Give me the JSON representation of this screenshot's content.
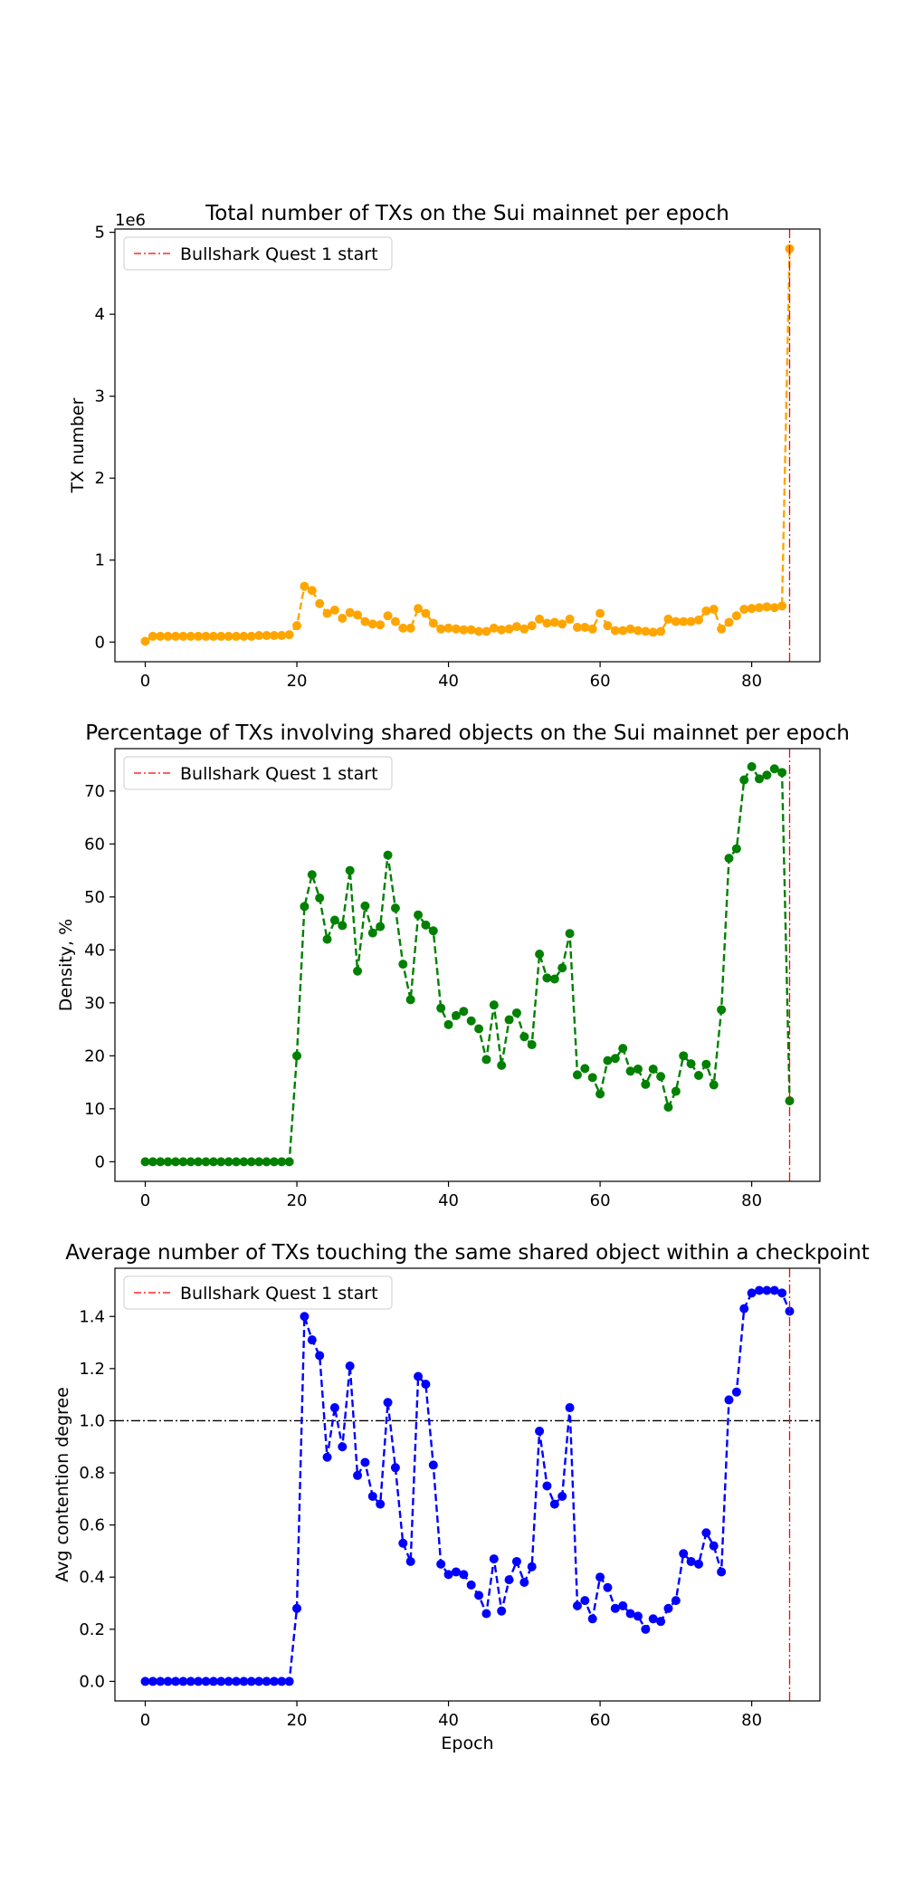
{
  "chart_data": [
    {
      "type": "line",
      "title": "Total number of TXs on the Sui mainnet per epoch",
      "xlabel": "",
      "ylabel": "TX number",
      "y_offset_label": "1e6",
      "xlim": [
        -4,
        89
      ],
      "ylim": [
        -0.24,
        5.04
      ],
      "x_ticks": [
        0,
        20,
        40,
        60,
        80
      ],
      "y_ticks": [
        0,
        1,
        2,
        3,
        4,
        5
      ],
      "x_tick_labels": [
        "0",
        "20",
        "40",
        "60",
        "80"
      ],
      "y_tick_labels": [
        "0",
        "1",
        "2",
        "3",
        "4",
        "5"
      ],
      "series": [
        {
          "color": "#ffa500",
          "style": "dashed-markers",
          "values": [
            0.01,
            0.07,
            0.07,
            0.07,
            0.07,
            0.07,
            0.07,
            0.07,
            0.07,
            0.07,
            0.07,
            0.07,
            0.07,
            0.07,
            0.07,
            0.08,
            0.08,
            0.08,
            0.08,
            0.09,
            0.2,
            0.68,
            0.63,
            0.47,
            0.35,
            0.39,
            0.29,
            0.36,
            0.33,
            0.25,
            0.22,
            0.21,
            0.32,
            0.25,
            0.17,
            0.17,
            0.41,
            0.35,
            0.23,
            0.16,
            0.17,
            0.16,
            0.15,
            0.15,
            0.13,
            0.13,
            0.17,
            0.15,
            0.16,
            0.19,
            0.16,
            0.2,
            0.28,
            0.23,
            0.24,
            0.22,
            0.28,
            0.18,
            0.18,
            0.16,
            0.35,
            0.2,
            0.14,
            0.14,
            0.16,
            0.14,
            0.13,
            0.12,
            0.13,
            0.28,
            0.25,
            0.25,
            0.25,
            0.27,
            0.38,
            0.4,
            0.16,
            0.24,
            0.32,
            0.4,
            0.41,
            0.42,
            0.43,
            0.42,
            0.44,
            4.8
          ]
        }
      ],
      "vline": {
        "x": 85,
        "label": "Bullshark Quest 1 start",
        "color": "#ff0000"
      },
      "legend_loc": "upper-left"
    },
    {
      "type": "line",
      "title": "Percentage of TXs involving shared objects on the Sui mainnet per epoch",
      "xlabel": "",
      "ylabel": "Density, %",
      "xlim": [
        -4,
        89
      ],
      "ylim": [
        -3.7,
        78
      ],
      "x_ticks": [
        0,
        20,
        40,
        60,
        80
      ],
      "y_ticks": [
        0,
        10,
        20,
        30,
        40,
        50,
        60,
        70
      ],
      "x_tick_labels": [
        "0",
        "20",
        "40",
        "60",
        "80"
      ],
      "y_tick_labels": [
        "0",
        "10",
        "20",
        "30",
        "40",
        "50",
        "60",
        "70"
      ],
      "series": [
        {
          "color": "#008000",
          "style": "dashed-markers",
          "values": [
            0,
            0,
            0,
            0,
            0,
            0,
            0,
            0,
            0,
            0,
            0,
            0,
            0,
            0,
            0,
            0,
            0,
            0,
            0,
            0,
            20,
            48.2,
            54.2,
            49.8,
            42,
            45.6,
            44.6,
            55,
            36,
            48.3,
            43.2,
            44.4,
            57.9,
            47.9,
            37.3,
            30.6,
            46.6,
            44.7,
            43.6,
            29,
            25.9,
            27.6,
            28.4,
            26.6,
            25.1,
            19.3,
            29.6,
            18.2,
            26.8,
            28.1,
            23.6,
            22.1,
            39.2,
            34.7,
            34.5,
            36.6,
            43.1,
            16.4,
            17.6,
            15.9,
            12.8,
            19.1,
            19.5,
            21.4,
            17.1,
            17.5,
            14.6,
            17.5,
            16.1,
            10.3,
            13.3,
            20,
            18.5,
            16.3,
            18.4,
            14.5,
            28.7,
            57.3,
            59.1,
            72.1,
            74.6,
            72.3,
            73,
            74.2,
            73.5,
            11.5
          ]
        }
      ],
      "vline": {
        "x": 85,
        "label": "Bullshark Quest 1 start",
        "color": "#ff0000"
      },
      "legend_loc": "upper-left"
    },
    {
      "type": "line",
      "title": "Average number of TXs touching the same shared object within a checkpoint",
      "xlabel": "Epoch",
      "ylabel": "Avg contention degree",
      "xlim": [
        -4,
        89
      ],
      "ylim": [
        -0.075,
        1.585
      ],
      "x_ticks": [
        0,
        20,
        40,
        60,
        80
      ],
      "y_ticks": [
        0.0,
        0.2,
        0.4,
        0.6,
        0.8,
        1.0,
        1.2,
        1.4
      ],
      "x_tick_labels": [
        "0",
        "20",
        "40",
        "60",
        "80"
      ],
      "y_tick_labels": [
        "0.0",
        "0.2",
        "0.4",
        "0.6",
        "0.8",
        "1.0",
        "1.2",
        "1.4"
      ],
      "series": [
        {
          "color": "#0000ff",
          "style": "dashed-markers",
          "values": [
            0,
            0,
            0,
            0,
            0,
            0,
            0,
            0,
            0,
            0,
            0,
            0,
            0,
            0,
            0,
            0,
            0,
            0,
            0,
            0,
            0.28,
            1.4,
            1.31,
            1.25,
            0.86,
            1.05,
            0.9,
            1.21,
            0.79,
            0.84,
            0.71,
            0.68,
            1.07,
            0.82,
            0.53,
            0.46,
            1.17,
            1.14,
            0.83,
            0.45,
            0.41,
            0.42,
            0.41,
            0.37,
            0.33,
            0.26,
            0.47,
            0.27,
            0.39,
            0.46,
            0.38,
            0.44,
            0.96,
            0.75,
            0.68,
            0.71,
            1.05,
            0.29,
            0.31,
            0.24,
            0.4,
            0.36,
            0.28,
            0.29,
            0.26,
            0.25,
            0.2,
            0.24,
            0.23,
            0.28,
            0.31,
            0.49,
            0.46,
            0.45,
            0.57,
            0.52,
            0.42,
            1.08,
            1.11,
            1.43,
            1.49,
            1.5,
            1.5,
            1.5,
            1.49,
            1.42
          ]
        }
      ],
      "hline": {
        "y": 1.0,
        "color": "#000000"
      },
      "vline": {
        "x": 85,
        "label": "Bullshark Quest 1 start",
        "color": "#ff0000"
      },
      "legend_loc": "upper-left"
    }
  ]
}
